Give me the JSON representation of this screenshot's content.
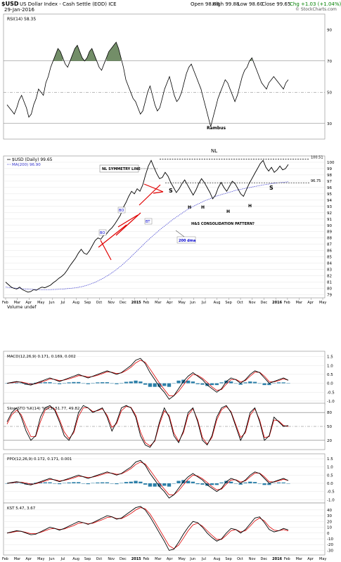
{
  "header": {
    "symbol": "$USD",
    "name": "US Dollar Index - Cash Settle (EOD) ICE",
    "date": "29-Jan-2016",
    "open": "Open 98.88",
    "high": "High 99.88",
    "low": "Low 98.60",
    "close": "Close 99.65",
    "change": "Chg +1.03 (+1.04%)",
    "attribution": "© StockCharts.com",
    "colors": {
      "change": "#008000"
    }
  },
  "chart_data": [
    {
      "id": "rsi",
      "type": "line",
      "title": "RSI(14) 58.35",
      "ylim": [
        20,
        100
      ],
      "yticks": [
        30,
        50,
        70,
        90
      ],
      "refs": [
        30,
        50,
        70
      ],
      "annotations": [
        {
          "text": "Rambus"
        }
      ],
      "series": [
        {
          "values": [
            42,
            40,
            38,
            36,
            40,
            45,
            48,
            44,
            40,
            34,
            36,
            42,
            46,
            52,
            50,
            48,
            56,
            60,
            66,
            70,
            74,
            78,
            76,
            72,
            68,
            66,
            70,
            74,
            78,
            80,
            76,
            72,
            70,
            72,
            76,
            78,
            74,
            70,
            66,
            64,
            68,
            72,
            76,
            78,
            80,
            82,
            78,
            72,
            66,
            58,
            54,
            50,
            46,
            44,
            40,
            36,
            38,
            44,
            50,
            54,
            48,
            42,
            38,
            40,
            46,
            52,
            56,
            60,
            54,
            48,
            44,
            46,
            50,
            56,
            62,
            66,
            68,
            64,
            60,
            56,
            52,
            46,
            40,
            34,
            28,
            34,
            40,
            46,
            50,
            54,
            58,
            56,
            52,
            48,
            44,
            48,
            54,
            60,
            64,
            66,
            70,
            72,
            68,
            64,
            60,
            56,
            54,
            52,
            56,
            58,
            60,
            58,
            56,
            54,
            52,
            56,
            58
          ]
        }
      ]
    },
    {
      "id": "price",
      "type": "line",
      "title": "$USD (Daily) 99.65",
      "legend": [
        "$USD (Daily) 99.65",
        "MA(200) 96.90"
      ],
      "ylim": [
        78.5,
        101
      ],
      "yticks": [
        79,
        80,
        81,
        82,
        83,
        84,
        85,
        86,
        87,
        88,
        89,
        90,
        91,
        92,
        93,
        94,
        95,
        96,
        97,
        98,
        99,
        100
      ],
      "x_labels": [
        "Feb",
        "Mar",
        "Apr",
        "May",
        "Jun",
        "Jul",
        "Aug",
        "Sep",
        "Oct",
        "Nov",
        "Dec",
        "2015",
        "Feb",
        "Mar",
        "Apr",
        "May",
        "Jun",
        "Jul",
        "Aug",
        "Sep",
        "Oct",
        "Nov",
        "Dec",
        "2016",
        "Feb",
        "Mar",
        "Apr",
        "May"
      ],
      "series": [
        {
          "name": "$USD (Daily) 99.65",
          "values": [
            81.0,
            80.6,
            80.2,
            80.0,
            79.9,
            80.2,
            79.8,
            79.6,
            79.4,
            79.5,
            79.8,
            79.7,
            80.0,
            80.2,
            80.1,
            80.3,
            80.5,
            80.9,
            81.2,
            81.6,
            81.9,
            82.3,
            82.9,
            83.6,
            84.2,
            84.8,
            85.6,
            86.2,
            85.6,
            85.4,
            86.0,
            86.8,
            87.6,
            88.0,
            87.8,
            88.4,
            88.6,
            89.2,
            89.6,
            90.2,
            90.9,
            91.6,
            92.8,
            93.6,
            94.6,
            95.4,
            95.0,
            95.8,
            95.4,
            96.4,
            98.0,
            99.4,
            100.3,
            99.2,
            98.2,
            97.4,
            97.6,
            98.4,
            97.8,
            96.8,
            96.0,
            95.2,
            95.8,
            96.6,
            97.2,
            96.4,
            95.6,
            94.8,
            95.6,
            96.6,
            97.4,
            96.8,
            96.0,
            95.2,
            94.2,
            94.8,
            96.0,
            96.8,
            96.0,
            95.4,
            96.2,
            97.0,
            96.6,
            95.8,
            95.0,
            94.6,
            95.6,
            96.6,
            97.4,
            98.2,
            99.0,
            99.8,
            100.3,
            99.2,
            98.6,
            99.2,
            98.4,
            98.8,
            99.4,
            98.8,
            99.0,
            99.65
          ]
        },
        {
          "name": "MA(200) 96.90",
          "values": [
            80.2,
            80.1,
            80.0,
            79.9,
            79.85,
            79.8,
            79.8,
            79.8,
            79.85,
            79.9,
            80.0,
            80.1,
            80.3,
            80.6,
            81.0,
            81.5,
            82.1,
            82.8,
            83.6,
            84.5,
            85.5,
            86.5,
            87.5,
            88.4,
            89.3,
            90.1,
            90.9,
            91.6,
            92.3,
            92.9,
            93.4,
            93.9,
            94.3,
            94.7,
            95.0,
            95.3,
            95.6,
            95.8,
            96.0,
            96.2,
            96.4,
            96.55,
            96.7,
            96.8,
            96.9
          ]
        }
      ],
      "hlines": [
        {
          "value": 100.51,
          "label": "100.51"
        },
        {
          "value": 96.75,
          "label": "96.75"
        }
      ],
      "annotations": [
        {
          "text": "NL"
        },
        {
          "text": "NL SYMMETRY LINE"
        },
        {
          "text": "S"
        },
        {
          "text": "S"
        },
        {
          "text": "H"
        },
        {
          "text": "H"
        },
        {
          "text": "H"
        },
        {
          "text": "H"
        },
        {
          "text": "BO"
        },
        {
          "text": "BO"
        },
        {
          "text": "BT"
        },
        {
          "text": "H&S CONSOLIDATION PATTERN?"
        },
        {
          "text": "200 dma"
        }
      ]
    },
    {
      "id": "volume",
      "type": "bar",
      "title": "Volume undef"
    },
    {
      "id": "macd",
      "type": "line",
      "title": "MACD(12,26,9) 0.171, 0.169, 0.002",
      "ylim": [
        -1.2,
        1.8
      ],
      "yticks": [
        -1.0,
        -0.5,
        0.0,
        0.5,
        1.0,
        1.5
      ],
      "series": [
        {
          "name": "0.171",
          "values": [
            0.0,
            0.05,
            0.1,
            0.05,
            -0.05,
            -0.1,
            0.0,
            0.1,
            0.2,
            0.3,
            0.2,
            0.1,
            0.2,
            0.3,
            0.4,
            0.5,
            0.4,
            0.3,
            0.4,
            0.5,
            0.6,
            0.7,
            0.6,
            0.5,
            0.6,
            0.8,
            1.0,
            1.3,
            1.4,
            1.1,
            0.6,
            0.2,
            -0.2,
            -0.5,
            -0.9,
            -0.7,
            -0.3,
            0.1,
            0.4,
            0.6,
            0.4,
            0.2,
            -0.1,
            -0.3,
            -0.5,
            -0.3,
            0.1,
            0.3,
            0.2,
            0.0,
            0.2,
            0.5,
            0.7,
            0.6,
            0.3,
            0.0,
            0.1,
            0.2,
            0.3,
            0.171
          ]
        },
        {
          "name": "0.169",
          "values": [
            0.0,
            0.03,
            0.07,
            0.07,
            0.02,
            -0.05,
            -0.03,
            0.05,
            0.14,
            0.24,
            0.22,
            0.15,
            0.18,
            0.25,
            0.33,
            0.43,
            0.41,
            0.35,
            0.38,
            0.45,
            0.54,
            0.64,
            0.62,
            0.55,
            0.58,
            0.72,
            0.9,
            1.15,
            1.3,
            1.18,
            0.8,
            0.4,
            0.0,
            -0.35,
            -0.7,
            -0.7,
            -0.45,
            -0.1,
            0.25,
            0.5,
            0.45,
            0.28,
            0.05,
            -0.2,
            -0.4,
            -0.35,
            -0.05,
            0.2,
            0.22,
            0.08,
            0.15,
            0.4,
            0.62,
            0.62,
            0.4,
            0.1,
            0.08,
            0.15,
            0.25,
            0.169
          ]
        }
      ],
      "histogram": [
        0.0,
        0.02,
        0.03,
        -0.02,
        -0.07,
        -0.05,
        0.03,
        0.05,
        0.06,
        0.06,
        -0.02,
        -0.05,
        0.02,
        0.05,
        0.07,
        0.07,
        -0.01,
        -0.05,
        0.02,
        0.05,
        0.06,
        0.06,
        -0.02,
        -0.05,
        0.02,
        0.08,
        0.1,
        0.15,
        0.1,
        -0.08,
        -0.2,
        -0.2,
        -0.2,
        -0.15,
        -0.2,
        0.0,
        0.15,
        0.2,
        0.15,
        0.1,
        -0.05,
        -0.08,
        -0.15,
        -0.1,
        -0.1,
        0.05,
        0.15,
        0.1,
        -0.02,
        -0.08,
        0.05,
        0.1,
        0.08,
        -0.02,
        -0.1,
        -0.1,
        0.02,
        0.05,
        0.05,
        0.002
      ]
    },
    {
      "id": "stoch",
      "type": "line",
      "title": "Slow STO %K(14) %D(3) 51.77, 49.82",
      "ylim": [
        0,
        100
      ],
      "yticks": [
        20,
        50,
        80
      ],
      "refs": [
        20,
        50,
        80
      ],
      "series": [
        {
          "name": "51.77",
          "values": [
            60,
            80,
            90,
            70,
            40,
            20,
            30,
            70,
            90,
            95,
            85,
            60,
            30,
            20,
            40,
            80,
            95,
            90,
            80,
            85,
            90,
            70,
            40,
            60,
            90,
            95,
            90,
            70,
            30,
            10,
            5,
            20,
            60,
            90,
            70,
            30,
            15,
            40,
            80,
            90,
            60,
            20,
            10,
            30,
            70,
            90,
            95,
            80,
            50,
            20,
            40,
            80,
            90,
            60,
            20,
            30,
            70,
            60,
            50,
            51.77
          ]
        },
        {
          "name": "49.82",
          "values": [
            55,
            75,
            85,
            75,
            50,
            28,
            28,
            60,
            85,
            92,
            88,
            65,
            38,
            24,
            36,
            72,
            90,
            90,
            82,
            84,
            88,
            74,
            48,
            56,
            84,
            93,
            91,
            74,
            38,
            15,
            8,
            18,
            55,
            84,
            74,
            36,
            18,
            36,
            74,
            88,
            64,
            26,
            12,
            26,
            64,
            86,
            93,
            82,
            54,
            26,
            36,
            74,
            88,
            64,
            26,
            28,
            64,
            62,
            52,
            49.82
          ]
        }
      ]
    },
    {
      "id": "ppo",
      "type": "line",
      "title": "PPO(12,26,9) 0.172, 0.171, 0.001",
      "ylim": [
        -1.2,
        1.8
      ],
      "yticks": [
        -1.0,
        -0.5,
        0.0,
        0.5,
        1.0,
        1.5
      ],
      "series": [
        {
          "name": "0.172",
          "values": [
            0.0,
            0.05,
            0.1,
            0.05,
            -0.05,
            -0.1,
            0.0,
            0.1,
            0.2,
            0.3,
            0.2,
            0.1,
            0.2,
            0.3,
            0.4,
            0.5,
            0.4,
            0.3,
            0.4,
            0.5,
            0.6,
            0.7,
            0.6,
            0.5,
            0.6,
            0.8,
            1.0,
            1.3,
            1.4,
            1.1,
            0.6,
            0.2,
            -0.2,
            -0.5,
            -0.9,
            -0.7,
            -0.3,
            0.1,
            0.4,
            0.6,
            0.4,
            0.2,
            -0.1,
            -0.3,
            -0.5,
            -0.3,
            0.1,
            0.3,
            0.2,
            0.0,
            0.2,
            0.5,
            0.7,
            0.6,
            0.3,
            0.0,
            0.1,
            0.2,
            0.3,
            0.172
          ]
        },
        {
          "name": "0.171",
          "values": [
            0.0,
            0.03,
            0.07,
            0.07,
            0.02,
            -0.05,
            -0.03,
            0.05,
            0.14,
            0.24,
            0.22,
            0.15,
            0.18,
            0.25,
            0.33,
            0.43,
            0.41,
            0.35,
            0.38,
            0.45,
            0.54,
            0.64,
            0.62,
            0.55,
            0.58,
            0.72,
            0.9,
            1.15,
            1.3,
            1.18,
            0.8,
            0.4,
            0.0,
            -0.35,
            -0.7,
            -0.7,
            -0.45,
            -0.1,
            0.25,
            0.5,
            0.45,
            0.28,
            0.05,
            -0.2,
            -0.4,
            -0.35,
            -0.05,
            0.2,
            0.22,
            0.08,
            0.15,
            0.4,
            0.62,
            0.62,
            0.4,
            0.1,
            0.08,
            0.15,
            0.25,
            0.171
          ]
        }
      ],
      "histogram": [
        0.0,
        0.02,
        0.03,
        -0.02,
        -0.07,
        -0.05,
        0.03,
        0.05,
        0.06,
        0.06,
        -0.02,
        -0.05,
        0.02,
        0.05,
        0.07,
        0.07,
        -0.01,
        -0.05,
        0.02,
        0.05,
        0.06,
        0.06,
        -0.02,
        -0.05,
        0.02,
        0.08,
        0.1,
        0.15,
        0.1,
        -0.08,
        -0.2,
        -0.2,
        -0.2,
        -0.15,
        -0.2,
        0.0,
        0.15,
        0.2,
        0.15,
        0.1,
        -0.05,
        -0.08,
        -0.15,
        -0.1,
        -0.1,
        0.05,
        0.15,
        0.1,
        -0.02,
        -0.08,
        0.05,
        0.1,
        0.08,
        -0.02,
        -0.1,
        -0.1,
        0.02,
        0.05,
        0.05,
        0.001
      ]
    },
    {
      "id": "kst",
      "type": "line",
      "title": "KST 5.47, 3.67",
      "ylim": [
        -38,
        52
      ],
      "yticks": [
        -30,
        -20,
        -10,
        0,
        10,
        20,
        30,
        40
      ],
      "series": [
        {
          "name": "5.47",
          "values": [
            0,
            2,
            4,
            3,
            0,
            -3,
            -2,
            2,
            6,
            10,
            8,
            5,
            8,
            12,
            16,
            20,
            18,
            15,
            18,
            22,
            26,
            30,
            28,
            24,
            26,
            32,
            38,
            44,
            46,
            40,
            28,
            14,
            0,
            -14,
            -30,
            -28,
            -16,
            -2,
            10,
            20,
            18,
            10,
            0,
            -8,
            -14,
            -10,
            0,
            8,
            6,
            0,
            6,
            16,
            26,
            28,
            18,
            6,
            2,
            4,
            8,
            5.47
          ]
        },
        {
          "name": "3.67",
          "values": [
            0,
            1,
            3,
            3,
            1,
            -1,
            -1,
            1,
            4,
            7,
            8,
            6,
            7,
            10,
            13,
            17,
            18,
            16,
            17,
            20,
            23,
            27,
            28,
            25,
            25,
            29,
            34,
            40,
            44,
            42,
            33,
            20,
            6,
            -8,
            -22,
            -27,
            -21,
            -9,
            4,
            14,
            17,
            12,
            4,
            -4,
            -11,
            -11,
            -4,
            4,
            6,
            2,
            4,
            12,
            21,
            26,
            21,
            11,
            5,
            4,
            6,
            3.67
          ]
        }
      ]
    }
  ]
}
